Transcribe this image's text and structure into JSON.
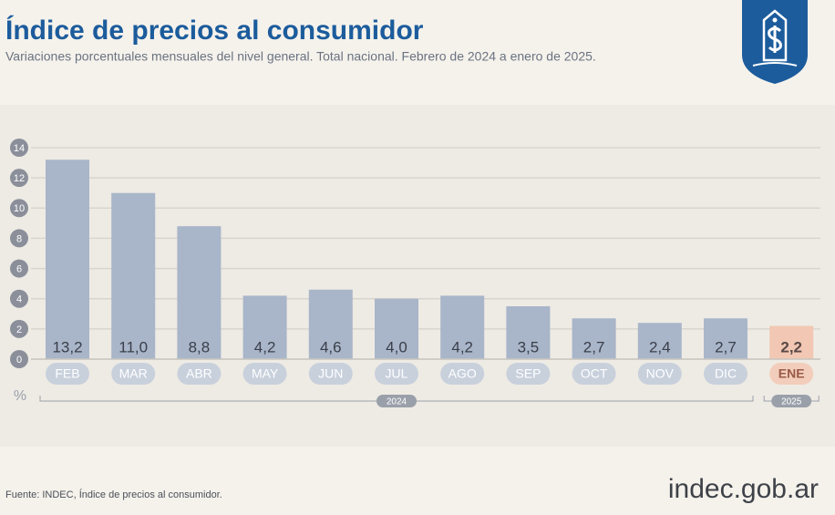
{
  "chart_data": {
    "type": "bar",
    "title": "Índice de precios al consumidor",
    "subtitle": "Variaciones porcentuales mensuales del nivel general. Total nacional. Febrero de 2024 a enero de 2025.",
    "categories": [
      "FEB",
      "MAR",
      "ABR",
      "MAY",
      "JUN",
      "JUL",
      "AGO",
      "SEP",
      "OCT",
      "NOV",
      "DIC",
      "ENE"
    ],
    "values": [
      13.2,
      11.0,
      8.8,
      4.2,
      4.6,
      4.0,
      4.2,
      3.5,
      2.7,
      2.4,
      2.7,
      2.2
    ],
    "value_labels": [
      "13,2",
      "11,0",
      "8,8",
      "4,2",
      "4,6",
      "4,0",
      "4,2",
      "3,5",
      "2,7",
      "2,4",
      "2,7",
      "2,2"
    ],
    "colors": [
      "#a9b5c9",
      "#a9b5c9",
      "#a9b5c9",
      "#a9b5c9",
      "#a9b5c9",
      "#a9b5c9",
      "#a9b5c9",
      "#a9b5c9",
      "#a9b5c9",
      "#a9b5c9",
      "#a9b5c9",
      "#f2c7b3"
    ],
    "ylim": [
      0,
      14
    ],
    "yticks": [
      0,
      2,
      4,
      6,
      8,
      10,
      12,
      14
    ],
    "y_unit": "%",
    "grid": true,
    "groups": [
      {
        "label": "2024",
        "span": 11
      },
      {
        "label": "2025",
        "span": 1
      }
    ],
    "source": "Fuente: INDEC, Índice de precios al consumidor.",
    "brand": "indec.gob.ar"
  }
}
